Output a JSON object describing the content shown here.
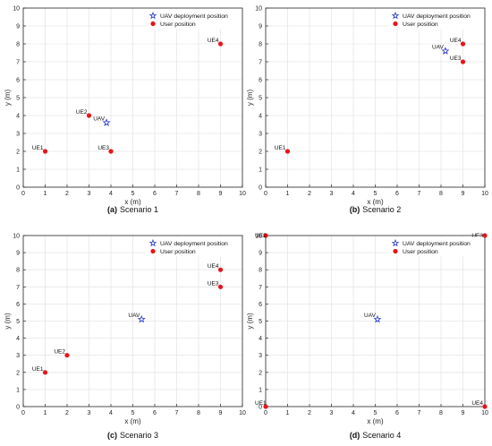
{
  "figure": {
    "panels": [
      {
        "caption_label": "(a)",
        "caption_text": "Scenario 1",
        "chart_data": {
          "type": "scatter",
          "xlabel": "x (m)",
          "ylabel": "y (m)",
          "xlim": [
            0,
            10
          ],
          "ylim": [
            0,
            10
          ],
          "xticks": [
            "0",
            "1",
            "2",
            "3",
            "4",
            "5",
            "6",
            "7",
            "8",
            "9",
            "10"
          ],
          "yticks": [
            "0",
            "1",
            "2",
            "3",
            "4",
            "5",
            "6",
            "7",
            "8",
            "9",
            "10"
          ],
          "grid": true,
          "legend": {
            "placement": "top-right",
            "entries": [
              "UAV deployment position",
              "User position"
            ]
          },
          "uav": {
            "label": "UAV",
            "x": 3.8,
            "y": 3.6
          },
          "users": [
            {
              "label": "UE1",
              "x": 1,
              "y": 2
            },
            {
              "label": "UE2",
              "x": 3,
              "y": 4
            },
            {
              "label": "UE3",
              "x": 4,
              "y": 2
            },
            {
              "label": "UE4",
              "x": 9,
              "y": 8
            }
          ]
        }
      },
      {
        "caption_label": "(b)",
        "caption_text": "Scenario 2",
        "chart_data": {
          "type": "scatter",
          "xlabel": "x (m)",
          "ylabel": "y (m)",
          "xlim": [
            0,
            10
          ],
          "ylim": [
            0,
            10
          ],
          "xticks": [
            "0",
            "1",
            "2",
            "3",
            "4",
            "5",
            "6",
            "7",
            "8",
            "9",
            "10"
          ],
          "yticks": [
            "0",
            "1",
            "2",
            "3",
            "4",
            "5",
            "6",
            "7",
            "8",
            "9",
            "10"
          ],
          "grid": true,
          "legend": {
            "placement": "top-right",
            "entries": [
              "UAV deployment position",
              "User position"
            ]
          },
          "uav": {
            "label": "UAV",
            "x": 8.2,
            "y": 7.6
          },
          "users": [
            {
              "label": "UE1",
              "x": 1,
              "y": 2
            },
            {
              "label": "UE4",
              "x": 9,
              "y": 8
            },
            {
              "label": "UE3",
              "x": 9,
              "y": 7
            }
          ]
        }
      },
      {
        "caption_label": "(c)",
        "caption_text": "Scenario 3",
        "chart_data": {
          "type": "scatter",
          "xlabel": "x (m)",
          "ylabel": "y (m)",
          "xlim": [
            0,
            10
          ],
          "ylim": [
            0,
            10
          ],
          "xticks": [
            "0",
            "1",
            "2",
            "3",
            "4",
            "5",
            "6",
            "7",
            "8",
            "9",
            "10"
          ],
          "yticks": [
            "0",
            "1",
            "2",
            "3",
            "4",
            "5",
            "6",
            "7",
            "8",
            "9",
            "10"
          ],
          "grid": true,
          "legend": {
            "placement": "top-right",
            "entries": [
              "UAV deployment position",
              "User position"
            ]
          },
          "uav": {
            "label": "UAV",
            "x": 5.4,
            "y": 5.1
          },
          "users": [
            {
              "label": "UE1",
              "x": 1,
              "y": 2
            },
            {
              "label": "UE2",
              "x": 2,
              "y": 3
            },
            {
              "label": "UE4",
              "x": 9,
              "y": 8
            },
            {
              "label": "UE3",
              "x": 9,
              "y": 7
            }
          ]
        }
      },
      {
        "caption_label": "(d)",
        "caption_text": "Scenario 4",
        "chart_data": {
          "type": "scatter",
          "xlabel": "x (m)",
          "ylabel": "y (m)",
          "xlim": [
            0,
            10
          ],
          "ylim": [
            0,
            10
          ],
          "xticks": [
            "0",
            "1",
            "2",
            "3",
            "4",
            "5",
            "6",
            "7",
            "8",
            "9",
            "10"
          ],
          "yticks": [
            "0",
            "1",
            "2",
            "3",
            "4",
            "5",
            "6",
            "7",
            "8",
            "9",
            "10"
          ],
          "grid": true,
          "legend": {
            "placement": "top-right",
            "entries": [
              "UAV deployment position",
              "User position"
            ]
          },
          "uav": {
            "label": "UAV",
            "x": 5.1,
            "y": 5.1
          },
          "users": [
            {
              "label": "UE2",
              "x": 0,
              "y": 10
            },
            {
              "label": "UE3",
              "x": 10,
              "y": 10
            },
            {
              "label": "UE1",
              "x": 0,
              "y": 0
            },
            {
              "label": "UE4",
              "x": 10,
              "y": 0
            }
          ]
        }
      }
    ],
    "colors": {
      "user_marker": "#e8141b",
      "uav_marker": "#2233cc",
      "grid": "#e6e6e6",
      "axis": "#262626"
    }
  }
}
